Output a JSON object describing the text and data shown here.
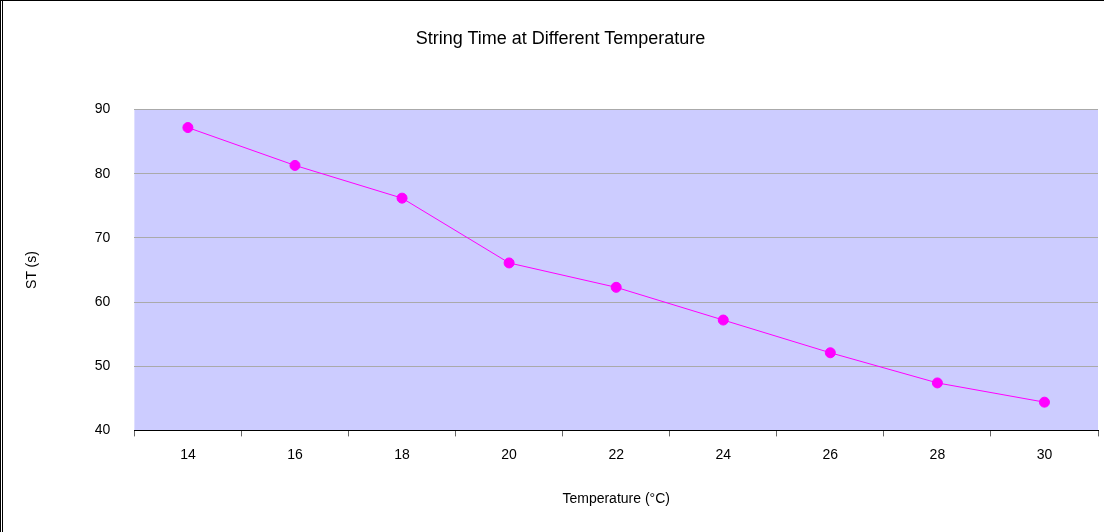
{
  "chart_data": {
    "type": "line",
    "title": "String Time at Different Temperature",
    "xlabel": "Temperature (°C)",
    "ylabel": "ST (s)",
    "categories": [
      "14",
      "16",
      "18",
      "20",
      "22",
      "24",
      "26",
      "28",
      "30"
    ],
    "series": [
      {
        "color": "#ff00ff",
        "values": [
          87.2,
          81.3,
          76.2,
          66.1,
          62.3,
          57.2,
          52.1,
          47.4,
          44.4
        ]
      }
    ],
    "ylim": [
      40,
      90
    ],
    "yticks": [
      40,
      50,
      60,
      70,
      80,
      90
    ],
    "grid": "y",
    "legend": false,
    "marker": "circle",
    "line_style": "solid"
  }
}
